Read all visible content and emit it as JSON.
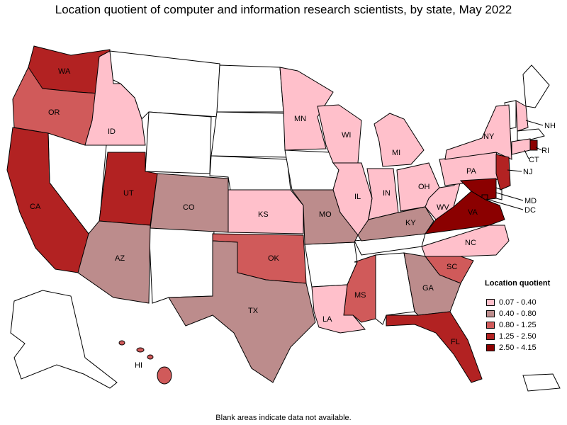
{
  "title": "Location quotient of computer and information research scientists, by state, May 2022",
  "footnote": "Blank areas indicate data not available.",
  "legend": {
    "title": "Location quotient",
    "items": [
      {
        "label": "0.07 - 0.40",
        "color": "#ffc0cb"
      },
      {
        "label": "0.40 - 0.80",
        "color": "#bc8c8c"
      },
      {
        "label": "0.80 - 1.25",
        "color": "#d05a5a"
      },
      {
        "label": "1.25 - 2.50",
        "color": "#b22222"
      },
      {
        "label": "2.50 - 4.15",
        "color": "#8b0000"
      }
    ]
  },
  "states": [
    {
      "code": "WA",
      "bin": 3
    },
    {
      "code": "OR",
      "bin": 2
    },
    {
      "code": "CA",
      "bin": 3
    },
    {
      "code": "ID",
      "bin": 0
    },
    {
      "code": "UT",
      "bin": 3
    },
    {
      "code": "AZ",
      "bin": 1
    },
    {
      "code": "CO",
      "bin": 1
    },
    {
      "code": "TX",
      "bin": 1
    },
    {
      "code": "OK",
      "bin": 2
    },
    {
      "code": "KS",
      "bin": 0
    },
    {
      "code": "MN",
      "bin": 0
    },
    {
      "code": "WI",
      "bin": 0
    },
    {
      "code": "MI",
      "bin": 0
    },
    {
      "code": "IL",
      "bin": 0
    },
    {
      "code": "IN",
      "bin": 0
    },
    {
      "code": "OH",
      "bin": 0
    },
    {
      "code": "MO",
      "bin": 1
    },
    {
      "code": "KY",
      "bin": 1
    },
    {
      "code": "WV",
      "bin": 0
    },
    {
      "code": "PA",
      "bin": 0
    },
    {
      "code": "NY",
      "bin": 0
    },
    {
      "code": "VA",
      "bin": 4
    },
    {
      "code": "NC",
      "bin": 0
    },
    {
      "code": "SC",
      "bin": 2
    },
    {
      "code": "GA",
      "bin": 1
    },
    {
      "code": "FL",
      "bin": 3
    },
    {
      "code": "MS",
      "bin": 2
    },
    {
      "code": "LA",
      "bin": 0
    },
    {
      "code": "NJ",
      "bin": 3
    },
    {
      "code": "MD",
      "bin": 4
    },
    {
      "code": "DC",
      "bin": 4
    },
    {
      "code": "CT",
      "bin": 0
    },
    {
      "code": "RI",
      "bin": 4
    },
    {
      "code": "NH",
      "bin": 0
    },
    {
      "code": "HI",
      "bin": 2
    }
  ]
}
